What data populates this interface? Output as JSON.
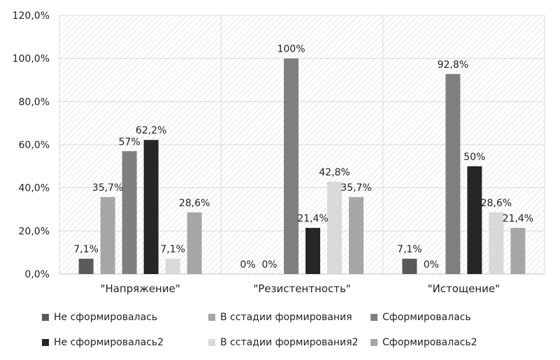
{
  "chart_data": {
    "type": "bar",
    "categories": [
      "\"Напряжение\"",
      "\"Резистентность\"",
      "\"Истощение\""
    ],
    "series": [
      {
        "name": "Не сформировалась",
        "values": [
          7.1,
          0,
          7.1
        ],
        "labels": [
          "7,1%",
          "0%",
          "7,1%"
        ],
        "color": "#595959"
      },
      {
        "name": "В сстадии формирования",
        "values": [
          35.7,
          0,
          0
        ],
        "labels": [
          "35,7%",
          "0%",
          "0%"
        ],
        "color": "#a6a6a6"
      },
      {
        "name": "Сформировалась",
        "values": [
          57,
          100,
          92.8
        ],
        "labels": [
          "57%",
          "100%",
          "92,8%"
        ],
        "color": "#7f7f7f"
      },
      {
        "name": "Не сформировалась2",
        "values": [
          62.2,
          21.4,
          50
        ],
        "labels": [
          "62,2%",
          "21,4%",
          "50%"
        ],
        "color": "#262626"
      },
      {
        "name": "В сстадии формирования2",
        "values": [
          7.1,
          42.8,
          28.6
        ],
        "labels": [
          "7,1%",
          "42,8%",
          "28,6%"
        ],
        "color": "#d9d9d9"
      },
      {
        "name": "Сформировалась2",
        "values": [
          28.6,
          35.7,
          21.4
        ],
        "labels": [
          "28,6%",
          "35,7%",
          "21,4%"
        ],
        "color": "#a6a6a6"
      }
    ],
    "y_ticks": [
      "0,0%",
      "20,0%",
      "40,0%",
      "60,0%",
      "80,0%",
      "100,0%",
      "120,0%"
    ],
    "ylim": [
      0,
      120
    ],
    "grid": true,
    "legend_position": "bottom"
  }
}
